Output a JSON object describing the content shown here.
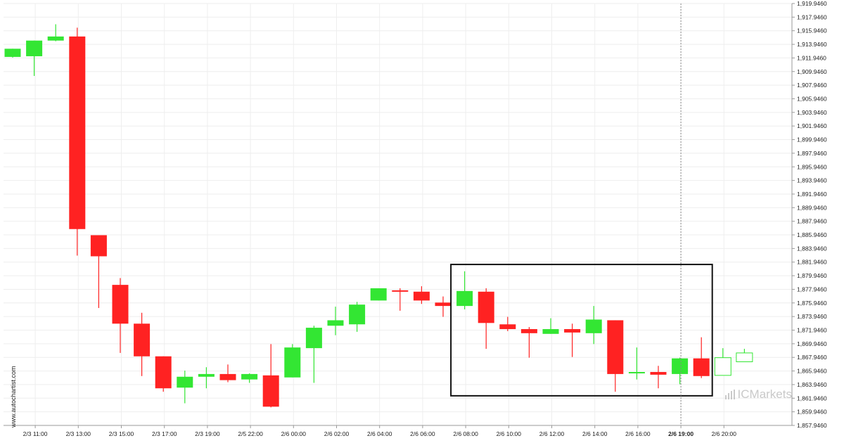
{
  "watermark": {
    "side_text": "www.autochartist.com",
    "brand_prefix": "IC",
    "brand_suffix": "Markets"
  },
  "chart_data": {
    "type": "candlestick",
    "y_axis": {
      "position": "right",
      "ticks": [
        "1,919.9460",
        "1,917.9460",
        "1,915.9460",
        "1,913.9460",
        "1,911.9460",
        "1,909.9460",
        "1,907.9460",
        "1,905.9460",
        "1,903.9460",
        "1,901.9460",
        "1,899.9460",
        "1,897.9460",
        "1,895.9460",
        "1,893.9460",
        "1,891.9460",
        "1,889.9460",
        "1,887.9460",
        "1,885.9460",
        "1,883.9460",
        "1,881.9460",
        "1,879.9460",
        "1,877.9460",
        "1,875.9460",
        "1,873.9460",
        "1,871.9460",
        "1,869.9460",
        "1,867.9460",
        "1,865.9460",
        "1,863.9460",
        "1,861.9460",
        "1,859.9460",
        "1,857.9460"
      ],
      "range": [
        1857.946,
        1919.946
      ]
    },
    "x_axis": {
      "ticks": [
        "2/3 11:00",
        "2/3 13:00",
        "2/3 15:00",
        "2/3 17:00",
        "2/3 19:00",
        "2/5 22:00",
        "2/6 00:00",
        "2/6 02:00",
        "2/6 04:00",
        "2/6 06:00",
        "2/6 08:00",
        "2/6 10:00",
        "2/6 12:00",
        "2/6 14:00",
        "2/6 16:00",
        "2/6 19:00",
        "2/6 20:00"
      ],
      "highlighted_tick": "2/6 19:00"
    },
    "grid": true,
    "candles": [
      {
        "open": 1912.1,
        "high": 1913.3,
        "low": 1912.0,
        "close": 1913.3
      },
      {
        "open": 1912.2,
        "high": 1914.5,
        "low": 1909.3,
        "close": 1914.5
      },
      {
        "open": 1914.5,
        "high": 1916.9,
        "low": 1914.4,
        "close": 1915.1
      },
      {
        "open": 1915.1,
        "high": 1916.4,
        "low": 1882.9,
        "close": 1886.8
      },
      {
        "open": 1885.9,
        "high": 1885.9,
        "low": 1875.2,
        "close": 1882.8
      },
      {
        "open": 1878.6,
        "high": 1879.6,
        "low": 1868.6,
        "close": 1872.9
      },
      {
        "open": 1872.9,
        "high": 1874.5,
        "low": 1865.2,
        "close": 1868.1
      },
      {
        "open": 1868.1,
        "high": 1868.1,
        "low": 1862.9,
        "close": 1863.4
      },
      {
        "open": 1863.5,
        "high": 1866.0,
        "low": 1861.2,
        "close": 1865.1
      },
      {
        "open": 1865.1,
        "high": 1866.5,
        "low": 1863.4,
        "close": 1865.5
      },
      {
        "open": 1865.5,
        "high": 1866.9,
        "low": 1864.3,
        "close": 1864.6
      },
      {
        "open": 1864.7,
        "high": 1865.6,
        "low": 1864.2,
        "close": 1865.5
      },
      {
        "open": 1865.3,
        "high": 1869.9,
        "low": 1860.6,
        "close": 1860.7
      },
      {
        "open": 1865.0,
        "high": 1869.9,
        "low": 1865.0,
        "close": 1869.4
      },
      {
        "open": 1869.3,
        "high": 1872.6,
        "low": 1864.2,
        "close": 1872.3
      },
      {
        "open": 1872.6,
        "high": 1875.4,
        "low": 1871.2,
        "close": 1873.4
      },
      {
        "open": 1872.8,
        "high": 1876.1,
        "low": 1871.7,
        "close": 1875.7
      },
      {
        "open": 1876.3,
        "high": 1878.1,
        "low": 1876.3,
        "close": 1878.1
      },
      {
        "open": 1877.8,
        "high": 1878.1,
        "low": 1874.8,
        "close": 1877.6
      },
      {
        "open": 1877.6,
        "high": 1878.4,
        "low": 1875.8,
        "close": 1876.3
      },
      {
        "open": 1876.0,
        "high": 1876.9,
        "low": 1873.9,
        "close": 1875.5
      },
      {
        "open": 1875.5,
        "high": 1880.6,
        "low": 1875.0,
        "close": 1877.7
      },
      {
        "open": 1877.6,
        "high": 1878.1,
        "low": 1869.2,
        "close": 1873.0
      },
      {
        "open": 1872.8,
        "high": 1873.9,
        "low": 1871.8,
        "close": 1872.1
      },
      {
        "open": 1872.1,
        "high": 1872.4,
        "low": 1867.9,
        "close": 1871.5
      },
      {
        "open": 1871.4,
        "high": 1873.7,
        "low": 1871.4,
        "close": 1872.1
      },
      {
        "open": 1872.1,
        "high": 1872.9,
        "low": 1868.0,
        "close": 1871.6
      },
      {
        "open": 1871.5,
        "high": 1875.5,
        "low": 1869.9,
        "close": 1873.5
      },
      {
        "open": 1873.4,
        "high": 1873.4,
        "low": 1862.9,
        "close": 1865.5
      },
      {
        "open": 1865.6,
        "high": 1869.4,
        "low": 1864.7,
        "close": 1865.8
      },
      {
        "open": 1865.8,
        "high": 1866.7,
        "low": 1863.4,
        "close": 1865.4
      },
      {
        "open": 1865.5,
        "high": 1867.9,
        "low": 1864.0,
        "close": 1867.8
      },
      {
        "open": 1867.8,
        "high": 1870.9,
        "low": 1864.9,
        "close": 1865.2
      },
      {
        "open": 1865.3,
        "high": 1869.3,
        "low": 1865.3,
        "close": 1867.9
      },
      {
        "open": 1867.3,
        "high": 1869.2,
        "low": 1867.3,
        "close": 1868.6
      }
    ],
    "projected_candles_from_index": 33,
    "pattern_box": {
      "from_candle": 21,
      "to_candle": 32,
      "high": 1881.6,
      "low": 1862.3
    },
    "vertical_marker_tick": "2/6 19:00",
    "colors": {
      "up": "#33e633",
      "down": "#ff2222",
      "grid": "#eeeeee",
      "box": "#111111",
      "marker": "#888888"
    }
  }
}
